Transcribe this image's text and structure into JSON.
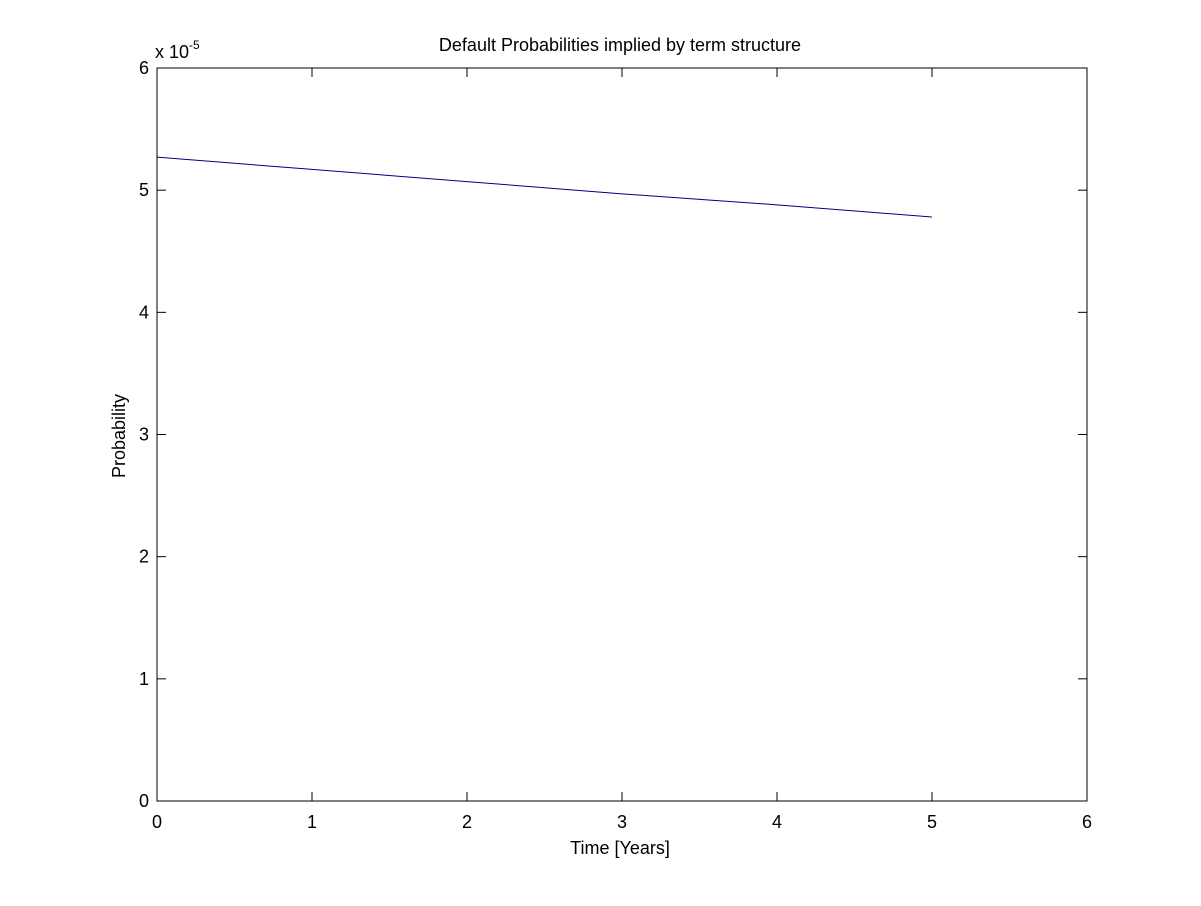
{
  "chart_data": {
    "type": "line",
    "title": "Default Probabilities implied by term structure",
    "xlabel": "Time [Years]",
    "ylabel": "Probability",
    "y_exponent_label": {
      "base": "x 10",
      "exponent": "-5"
    },
    "xlim": [
      0,
      6
    ],
    "ylim": [
      0,
      6
    ],
    "x_ticks": [
      "0",
      "1",
      "2",
      "3",
      "4",
      "5",
      "6"
    ],
    "y_ticks": [
      "0",
      "1",
      "2",
      "3",
      "4",
      "5",
      "6"
    ],
    "grid": false,
    "series": [
      {
        "x": [
          0,
          1,
          2,
          3,
          4,
          5
        ],
        "y": [
          5.27,
          5.17,
          5.07,
          4.97,
          4.88,
          4.78
        ],
        "color": "#00007f"
      }
    ]
  }
}
